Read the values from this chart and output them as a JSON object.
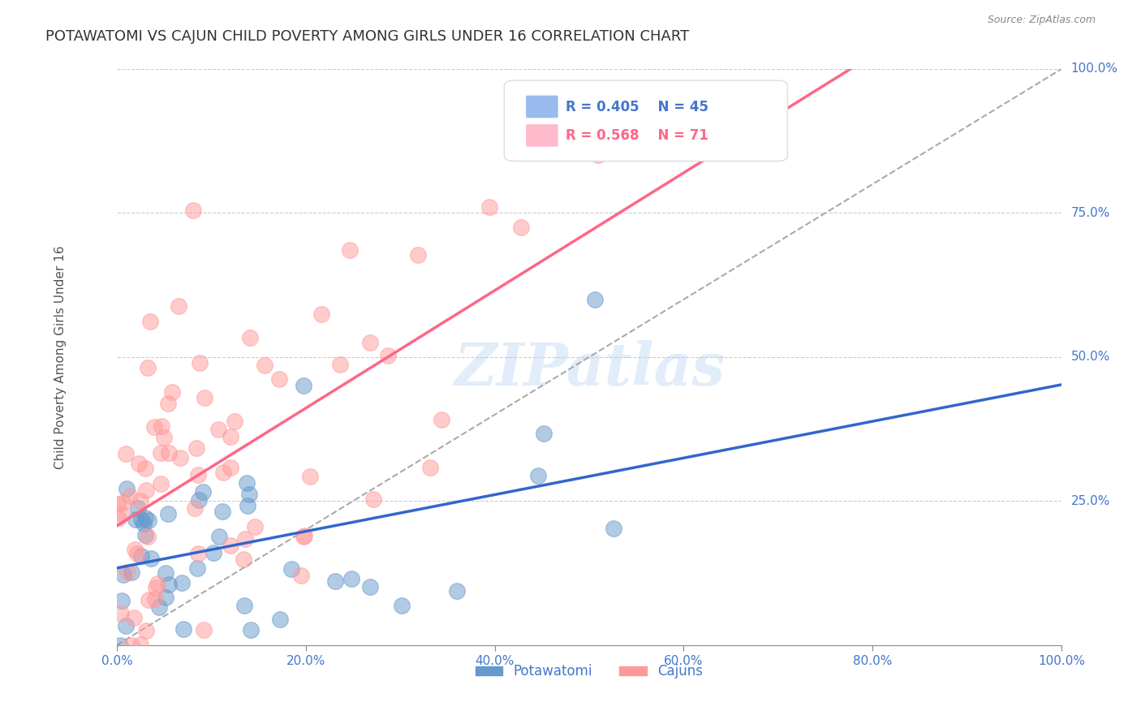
{
  "title": "POTAWATOMI VS CAJUN CHILD POVERTY AMONG GIRLS UNDER 16 CORRELATION CHART",
  "source": "Source: ZipAtlas.com",
  "ylabel": "Child Poverty Among Girls Under 16",
  "xlabel": "",
  "potawatomi_R": 0.405,
  "potawatomi_N": 45,
  "cajun_R": 0.568,
  "cajun_N": 71,
  "blue_color": "#6699CC",
  "pink_color": "#FF9999",
  "blue_line_color": "#3366CC",
  "pink_line_color": "#FF6688",
  "legend_box_blue": "#99BBEE",
  "legend_box_pink": "#FFBBCC",
  "watermark_color": "#AACCEE",
  "title_color": "#333333",
  "axis_label_color": "#4477CC",
  "grid_color": "#CCCCCC",
  "background_color": "#FFFFFF"
}
